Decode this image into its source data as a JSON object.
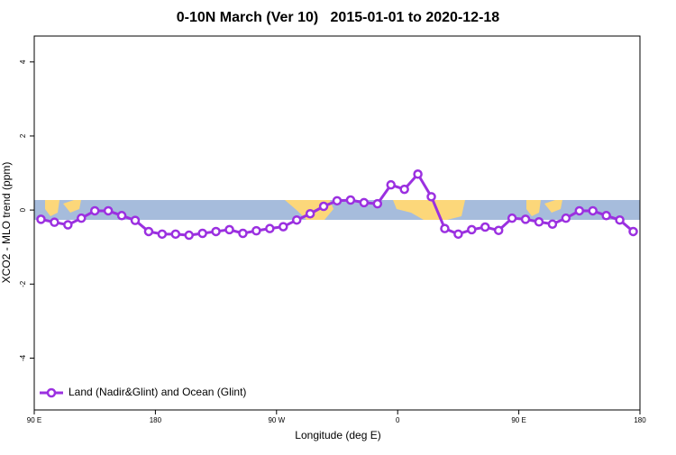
{
  "chart_data": {
    "type": "line",
    "title": "0-10N March (Ver 10)   2015-01-01 to 2020-12-18",
    "x_label": "Longitude (deg E)",
    "y_label": "XCO2 - MLO trend (ppm)",
    "x": [
      95,
      105,
      115,
      125,
      135,
      145,
      155,
      165,
      175,
      185,
      195,
      205,
      215,
      225,
      235,
      245,
      255,
      265,
      275,
      285,
      295,
      305,
      315,
      325,
      335,
      345,
      355,
      365,
      375,
      385,
      395,
      405,
      415,
      425,
      435,
      445,
      455,
      465,
      475,
      485,
      495,
      505,
      515,
      525,
      535
    ],
    "series": [
      {
        "name": "Land (Nadir&Glint) and Ocean (Glint)",
        "color": "#9b30e0",
        "values": [
          -0.25,
          -0.33,
          -0.4,
          -0.22,
          -0.02,
          -0.02,
          -0.15,
          -0.28,
          -0.58,
          -0.65,
          -0.65,
          -0.68,
          -0.63,
          -0.58,
          -0.53,
          -0.63,
          -0.56,
          -0.5,
          -0.45,
          -0.27,
          -0.1,
          0.1,
          0.25,
          0.27,
          0.2,
          0.17,
          0.68,
          0.56,
          0.97,
          0.36,
          -0.5,
          -0.65,
          -0.53,
          -0.46,
          -0.55,
          -0.22,
          -0.25,
          -0.32,
          -0.38,
          -0.22,
          -0.02,
          -0.02,
          -0.15,
          -0.27,
          -0.58
        ]
      }
    ],
    "xlim": [
      90,
      540
    ],
    "ylim": [
      -5.4,
      4.7
    ],
    "xticks": [
      {
        "value": 90,
        "label": "90 E"
      },
      180,
      {
        "value": 270,
        "label": "90 W"
      },
      {
        "value": 360,
        "label": "0"
      },
      {
        "value": 450,
        "label": "90 E"
      },
      {
        "value": 540,
        "label": "180"
      }
    ],
    "yticks": [
      -4,
      -2,
      0,
      2,
      4
    ],
    "legend": "bottom-left"
  }
}
